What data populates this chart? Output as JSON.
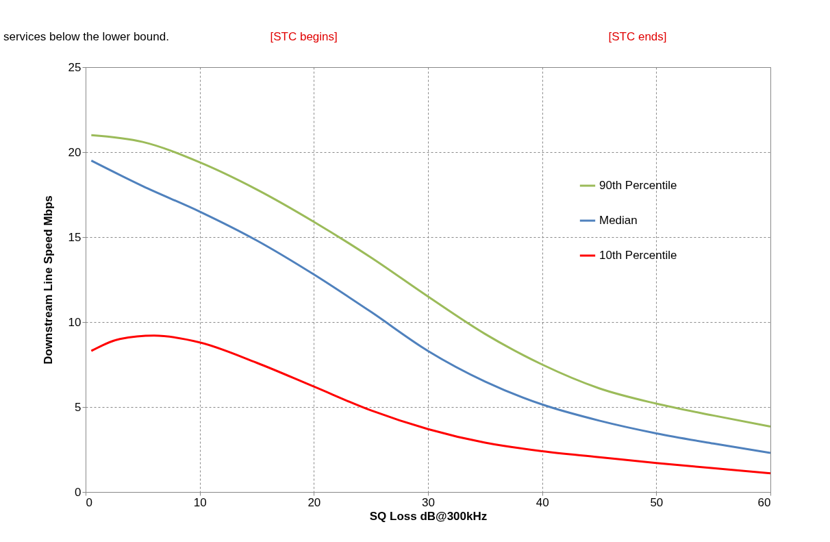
{
  "chart_data": {
    "type": "line",
    "xlabel": "SQ Loss dB@300kHz",
    "ylabel": "Downstream Line Speed Mbps",
    "annotations": [
      "services below the lower bound.",
      "[STC begins]",
      "[STC ends]"
    ],
    "xlim": [
      0,
      60
    ],
    "xticks": [
      0,
      10,
      20,
      30,
      40,
      50,
      60
    ],
    "ylim": [
      0,
      25
    ],
    "yticks": [
      0,
      5,
      10,
      15,
      20,
      25
    ],
    "grid": true,
    "legend": "right",
    "line_style": "solid",
    "marker": "none",
    "series": [
      {
        "name": "90th Percentile",
        "color": "#9bbb59",
        "x": [
          0.5,
          5,
          10,
          15,
          20,
          25,
          30,
          35,
          40,
          45,
          50,
          55,
          60
        ],
        "values": [
          21.0,
          20.6,
          19.4,
          17.8,
          15.9,
          13.8,
          11.5,
          9.3,
          7.5,
          6.1,
          5.2,
          4.5,
          3.85
        ]
      },
      {
        "name": "Median",
        "color": "#4f81bd",
        "x": [
          0.5,
          5,
          10,
          15,
          20,
          25,
          30,
          35,
          40,
          45,
          50,
          55,
          60
        ],
        "values": [
          19.5,
          18.0,
          16.5,
          14.8,
          12.8,
          10.6,
          8.3,
          6.5,
          5.15,
          4.2,
          3.45,
          2.85,
          2.3
        ]
      },
      {
        "name": "10th Percentile",
        "color": "#ff0000",
        "x": [
          0.5,
          3,
          6,
          10,
          15,
          20,
          25,
          30,
          35,
          40,
          45,
          50,
          55,
          60
        ],
        "values": [
          8.3,
          9.0,
          9.2,
          8.8,
          7.6,
          6.2,
          4.8,
          3.7,
          2.9,
          2.4,
          2.05,
          1.7,
          1.4,
          1.1
        ]
      }
    ]
  }
}
